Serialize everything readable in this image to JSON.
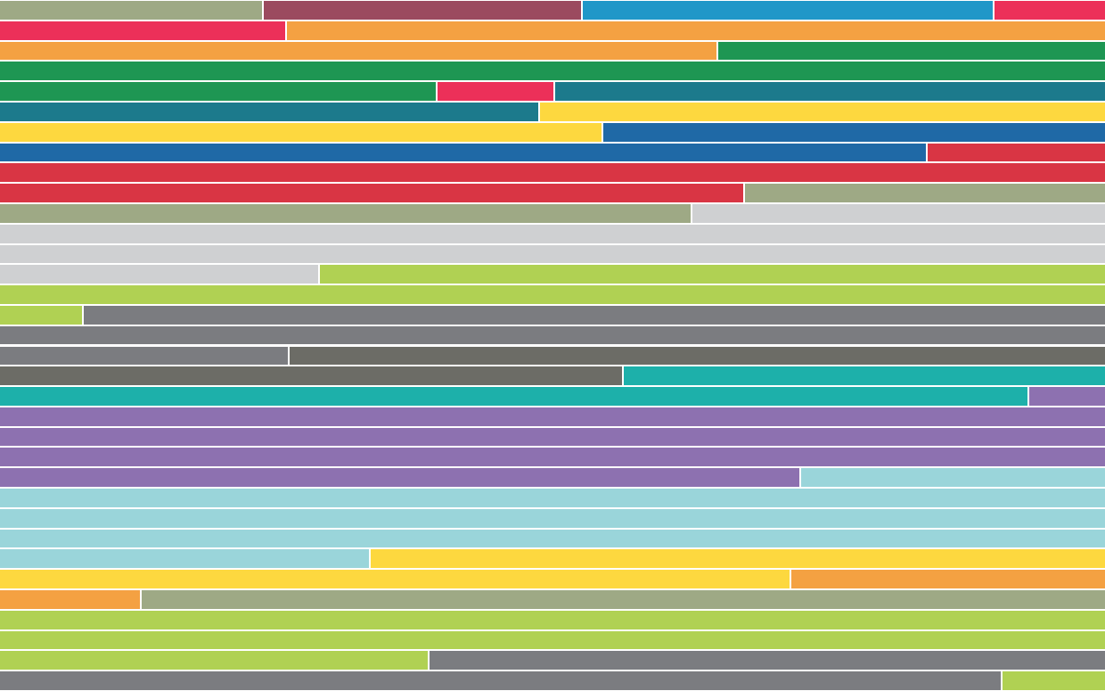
{
  "palette": {
    "sage": "#9ea985",
    "plum": "#9b4a5f",
    "sky": "#2097c8",
    "crimson": "#ec3059",
    "orange": "#f4a142",
    "green": "#1e9653",
    "teal": "#1c7a8c",
    "yellow": "#fdd83f",
    "blue": "#1f69a6",
    "red": "#d93544",
    "silver": "#cfd0d2",
    "lime": "#b0d153",
    "gray": "#7b7c80",
    "darkgray": "#6c6c66",
    "turquoise": "#1db0aa",
    "purple": "#8d71b0",
    "aqua": "#9ad5da"
  },
  "rows": [
    [
      [
        "sage",
        0.2375
      ],
      [
        "plum",
        0.2895
      ],
      [
        "sky",
        0.3725
      ],
      [
        "crimson",
        0.1005
      ]
    ],
    [
      [
        "crimson",
        0.2585
      ],
      [
        "orange",
        0.7415
      ]
    ],
    [
      [
        "orange",
        0.649
      ],
      [
        "green",
        0.351
      ]
    ],
    [
      [
        "green",
        1.0
      ]
    ],
    [
      [
        "green",
        0.3955
      ],
      [
        "crimson",
        0.1065
      ],
      [
        "teal",
        0.498
      ]
    ],
    [
      [
        "teal",
        0.488
      ],
      [
        "yellow",
        0.512
      ]
    ],
    [
      [
        "yellow",
        0.5455
      ],
      [
        "blue",
        0.4545
      ]
    ],
    [
      [
        "blue",
        0.8385
      ],
      [
        "red",
        0.1615
      ]
    ],
    [
      [
        "red",
        1.0
      ]
    ],
    [
      [
        "red",
        0.673
      ],
      [
        "sage",
        0.327
      ]
    ],
    [
      [
        "sage",
        0.626
      ],
      [
        "silver",
        0.374
      ]
    ],
    [
      [
        "silver",
        1.0
      ]
    ],
    [
      [
        "silver",
        1.0
      ]
    ],
    [
      [
        "silver",
        0.2885
      ],
      [
        "lime",
        0.7115
      ]
    ],
    [
      [
        "lime",
        1.0
      ]
    ],
    [
      [
        "lime",
        0.075
      ],
      [
        "gray",
        0.925
      ]
    ],
    [
      [
        "gray",
        1.0
      ]
    ],
    [
      [
        "gray",
        0.261
      ],
      [
        "darkgray",
        0.739
      ]
    ],
    [
      [
        "darkgray",
        0.5635
      ],
      [
        "turquoise",
        0.4365
      ]
    ],
    [
      [
        "turquoise",
        0.9305
      ],
      [
        "purple",
        0.0695
      ]
    ],
    [
      [
        "purple",
        1.0
      ]
    ],
    [
      [
        "purple",
        1.0
      ]
    ],
    [
      [
        "purple",
        1.0
      ]
    ],
    [
      [
        "purple",
        0.7245
      ],
      [
        "aqua",
        0.2755
      ]
    ],
    [
      [
        "aqua",
        1.0
      ]
    ],
    [
      [
        "aqua",
        1.0
      ]
    ],
    [
      [
        "aqua",
        1.0
      ]
    ],
    [
      [
        "aqua",
        0.3345
      ],
      [
        "yellow",
        0.6655
      ]
    ],
    [
      [
        "yellow",
        0.7155
      ],
      [
        "orange",
        0.2845
      ]
    ],
    [
      [
        "orange",
        0.1275
      ],
      [
        "sage",
        0.8725
      ]
    ],
    [
      [
        "lime",
        1.0
      ]
    ],
    [
      [
        "lime",
        1.0
      ]
    ],
    [
      [
        "lime",
        0.388
      ],
      [
        "gray",
        0.612
      ]
    ],
    [
      [
        "gray",
        0.9065
      ],
      [
        "lime",
        0.0935
      ]
    ]
  ]
}
